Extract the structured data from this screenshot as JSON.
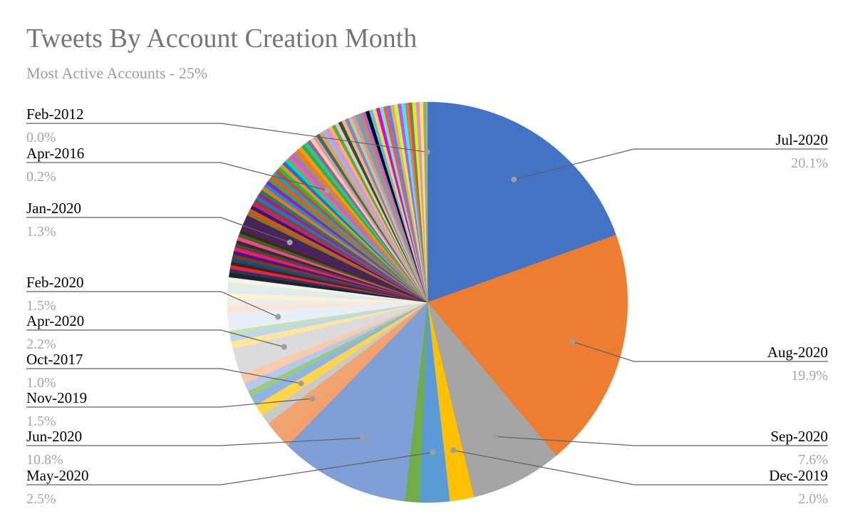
{
  "chart_data": {
    "type": "pie",
    "title": "Tweets By Account Creation Month",
    "subtitle": "Most Active Accounts - 25%",
    "slices": [
      {
        "label": "Jul-2020",
        "value": 20.1,
        "color": "#4472c4",
        "callout": true,
        "value_text": "20.1%"
      },
      {
        "label": "Aug-2020",
        "value": 19.9,
        "color": "#ed7d31",
        "callout": true,
        "value_text": "19.9%"
      },
      {
        "label": "Sep-2020",
        "value": 7.6,
        "color": "#a5a5a5",
        "callout": true,
        "value_text": "7.6%"
      },
      {
        "label": "Dec-2019",
        "value": 2.0,
        "color": "#ffc000",
        "callout": true,
        "value_text": "2.0%"
      },
      {
        "label": "May-2020",
        "value": 2.5,
        "color": "#5b9bd5",
        "callout": true,
        "value_text": "2.5%"
      },
      {
        "label": "",
        "value": 1.2,
        "color": "#70ad47",
        "callout": false
      },
      {
        "label": "Jun-2020",
        "value": 10.8,
        "color": "#7f9fd6",
        "callout": true,
        "value_text": "10.8%"
      },
      {
        "label": "",
        "value": 0.9,
        "color": "#f4a06a",
        "callout": false
      },
      {
        "label": "Nov-2019",
        "value": 1.5,
        "color": "#f1a46f",
        "callout": true,
        "value_text": "1.5%"
      },
      {
        "label": "",
        "value": 0.8,
        "color": "#c9c9c9",
        "callout": false
      },
      {
        "label": "Oct-2017",
        "value": 1.0,
        "color": "#ffd54a",
        "callout": true,
        "value_text": "1.0%"
      },
      {
        "label": "",
        "value": 0.8,
        "color": "#8fb4e3",
        "callout": false
      },
      {
        "label": "",
        "value": 0.5,
        "color": "#9bc97d",
        "callout": false
      },
      {
        "label": "",
        "value": 0.7,
        "color": "#b7c9ea",
        "callout": false
      },
      {
        "label": "",
        "value": 0.8,
        "color": "#f8cbad",
        "callout": false
      },
      {
        "label": "Apr-2020",
        "value": 2.2,
        "color": "#dbdbdb",
        "callout": true,
        "value_text": "2.2%"
      },
      {
        "label": "",
        "value": 0.6,
        "color": "#ffe699",
        "callout": false
      },
      {
        "label": "",
        "value": 0.5,
        "color": "#bdd7ee",
        "callout": false
      },
      {
        "label": "",
        "value": 0.4,
        "color": "#c5e0b4",
        "callout": false
      },
      {
        "label": "Feb-2020",
        "value": 1.5,
        "color": "#e8eef8",
        "callout": true,
        "value_text": "1.5%"
      },
      {
        "label": "",
        "value": 0.6,
        "color": "#fbe5d6",
        "callout": false
      },
      {
        "label": "",
        "value": 0.5,
        "color": "#ededed",
        "callout": false
      },
      {
        "label": "",
        "value": 0.5,
        "color": "#fff2cc",
        "callout": false
      },
      {
        "label": "",
        "value": 0.5,
        "color": "#deebf7",
        "callout": false
      },
      {
        "label": "",
        "value": 0.4,
        "color": "#e2f0d9",
        "callout": false
      },
      {
        "label": "",
        "value": 0.4,
        "color": "#f2f2f2",
        "callout": false
      },
      {
        "label": "",
        "value": 0.4,
        "color": "#222222",
        "callout": false
      },
      {
        "label": "",
        "value": 0.3,
        "color": "#1f3864",
        "callout": false
      },
      {
        "label": "",
        "value": 0.3,
        "color": "#ff1744",
        "callout": false
      },
      {
        "label": "",
        "value": 0.3,
        "color": "#3a2e00",
        "callout": false
      },
      {
        "label": "",
        "value": 0.3,
        "color": "#0d47a1",
        "callout": false
      },
      {
        "label": "",
        "value": 0.3,
        "color": "#7b3f00",
        "callout": false
      },
      {
        "label": "",
        "value": 0.3,
        "color": "#4a148c",
        "callout": false
      },
      {
        "label": "",
        "value": 0.3,
        "color": "#e91e63",
        "callout": false
      },
      {
        "label": "",
        "value": 0.3,
        "color": "#5d4037",
        "callout": false
      },
      {
        "label": "",
        "value": 0.3,
        "color": "#263238",
        "callout": false
      },
      {
        "label": "",
        "value": 0.3,
        "color": "#ff4081",
        "callout": false
      },
      {
        "label": "",
        "value": 0.3,
        "color": "#33691e",
        "callout": false
      },
      {
        "label": "",
        "value": 0.3,
        "color": "#3e2723",
        "callout": false
      },
      {
        "label": "Jan-2020",
        "value": 1.3,
        "color": "#4a235a",
        "callout": true,
        "value_text": "1.3%"
      },
      {
        "label": "",
        "value": 0.3,
        "color": "#827717",
        "callout": false
      },
      {
        "label": "",
        "value": 0.3,
        "color": "#e64a19",
        "callout": false
      },
      {
        "label": "",
        "value": 0.3,
        "color": "#1a237e",
        "callout": false
      },
      {
        "label": "",
        "value": 0.3,
        "color": "#d81b60",
        "callout": false
      },
      {
        "label": "",
        "value": 0.3,
        "color": "#6d4c41",
        "callout": false
      },
      {
        "label": "",
        "value": 0.3,
        "color": "#1976d2",
        "callout": false
      },
      {
        "label": "",
        "value": 0.3,
        "color": "#c2185b",
        "callout": false
      },
      {
        "label": "",
        "value": 0.3,
        "color": "#00897b",
        "callout": false
      },
      {
        "label": "",
        "value": 0.3,
        "color": "#ff6f00",
        "callout": false
      },
      {
        "label": "",
        "value": 0.3,
        "color": "#1e88e5",
        "callout": false
      },
      {
        "label": "",
        "value": 0.3,
        "color": "#8e24aa",
        "callout": false
      },
      {
        "label": "",
        "value": 0.3,
        "color": "#43a047",
        "callout": false
      },
      {
        "label": "",
        "value": 0.3,
        "color": "#f4511e",
        "callout": false
      },
      {
        "label": "",
        "value": 0.3,
        "color": "#00acc1",
        "callout": false
      },
      {
        "label": "",
        "value": 0.3,
        "color": "#e53935",
        "callout": false
      },
      {
        "label": "",
        "value": 0.3,
        "color": "#00c853",
        "callout": false
      },
      {
        "label": "",
        "value": 0.3,
        "color": "#ff9100",
        "callout": false
      },
      {
        "label": "",
        "value": 0.3,
        "color": "#2962ff",
        "callout": false
      },
      {
        "label": "",
        "value": 0.3,
        "color": "#00e676",
        "callout": false
      },
      {
        "label": "",
        "value": 0.3,
        "color": "#f06292",
        "callout": false
      },
      {
        "label": "",
        "value": 0.3,
        "color": "#ba68c8",
        "callout": false
      },
      {
        "label": "Apr-2016",
        "value": 0.2,
        "color": "#8e8e8e",
        "callout": true,
        "value_text": "0.2%"
      },
      {
        "label": "",
        "value": 0.4,
        "color": "#e67e22",
        "callout": false
      },
      {
        "label": "",
        "value": 0.3,
        "color": "#f39c12",
        "callout": false
      },
      {
        "label": "",
        "value": 0.3,
        "color": "#27ae60",
        "callout": false
      },
      {
        "label": "",
        "value": 0.3,
        "color": "#2ecc71",
        "callout": false
      },
      {
        "label": "",
        "value": 0.3,
        "color": "#9b59b6",
        "callout": false
      },
      {
        "label": "",
        "value": 0.3,
        "color": "#ffcc80",
        "callout": false
      },
      {
        "label": "",
        "value": 0.3,
        "color": "#ce93d8",
        "callout": false
      },
      {
        "label": "",
        "value": 0.3,
        "color": "#2e7d32",
        "callout": false
      },
      {
        "label": "",
        "value": 0.3,
        "color": "#ff8a80",
        "callout": false
      },
      {
        "label": "",
        "value": 0.3,
        "color": "#80cbc4",
        "callout": false
      },
      {
        "label": "",
        "value": 0.3,
        "color": "#ee82ee",
        "callout": false
      },
      {
        "label": "",
        "value": 0.3,
        "color": "#ffb74d",
        "callout": false
      },
      {
        "label": "",
        "value": 0.3,
        "color": "#4caf50",
        "callout": false
      },
      {
        "label": "",
        "value": 0.3,
        "color": "#f8bbd0",
        "callout": false
      },
      {
        "label": "",
        "value": 0.3,
        "color": "#1b5e20",
        "callout": false
      },
      {
        "label": "",
        "value": 0.3,
        "color": "#ffab91",
        "callout": false
      },
      {
        "label": "",
        "value": 0.3,
        "color": "#7986cb",
        "callout": false
      },
      {
        "label": "",
        "value": 0.3,
        "color": "#aed581",
        "callout": false
      },
      {
        "label": "",
        "value": 0.3,
        "color": "#ff80ab",
        "callout": false
      },
      {
        "label": "",
        "value": 0.3,
        "color": "#4db6ac",
        "callout": false
      },
      {
        "label": "",
        "value": 0.3,
        "color": "#e57373",
        "callout": false
      },
      {
        "label": "",
        "value": 0.3,
        "color": "#9575cd",
        "callout": false
      },
      {
        "label": "",
        "value": 0.3,
        "color": "#000000",
        "callout": false
      },
      {
        "label": "",
        "value": 0.3,
        "color": "#64b5f6",
        "callout": false
      },
      {
        "label": "",
        "value": 0.3,
        "color": "#ffd740",
        "callout": false
      },
      {
        "label": "",
        "value": 0.3,
        "color": "#d500f9",
        "callout": false
      },
      {
        "label": "",
        "value": 0.3,
        "color": "#69f0ae",
        "callout": false
      },
      {
        "label": "",
        "value": 0.3,
        "color": "#ff5252",
        "callout": false
      },
      {
        "label": "",
        "value": 0.3,
        "color": "#448aff",
        "callout": false
      },
      {
        "label": "",
        "value": 0.3,
        "color": "#ffab40",
        "callout": false
      },
      {
        "label": "",
        "value": 0.3,
        "color": "#b2ff59",
        "callout": false
      },
      {
        "label": "",
        "value": 0.3,
        "color": "#e040fb",
        "callout": false
      },
      {
        "label": "",
        "value": 0.3,
        "color": "#18ffff",
        "callout": false
      },
      {
        "label": "",
        "value": 0.3,
        "color": "#ff6e40",
        "callout": false
      },
      {
        "label": "",
        "value": 0.3,
        "color": "#8d6e63",
        "callout": false
      },
      {
        "label": "",
        "value": 0.3,
        "color": "#c6ff00",
        "callout": false
      },
      {
        "label": "",
        "value": 0.3,
        "color": "#ea80fc",
        "callout": false
      },
      {
        "label": "",
        "value": 0.3,
        "color": "#ffeb3b",
        "callout": false
      },
      {
        "label": "",
        "value": 0.3,
        "color": "#90a4ae",
        "callout": false
      },
      {
        "label": "Feb-2012",
        "value": 0.05,
        "color": "#9ccc65",
        "callout": true,
        "value_text": "0.0%"
      }
    ],
    "label_placement": {
      "Jul-2020": "right",
      "Aug-2020": "right",
      "Sep-2020": "right",
      "Dec-2019": "right",
      "May-2020": "left",
      "Jun-2020": "left",
      "Nov-2019": "left",
      "Oct-2017": "left",
      "Apr-2020": "left",
      "Feb-2020": "left",
      "Jan-2020": "left",
      "Apr-2016": "left",
      "Feb-2012": "left"
    }
  }
}
